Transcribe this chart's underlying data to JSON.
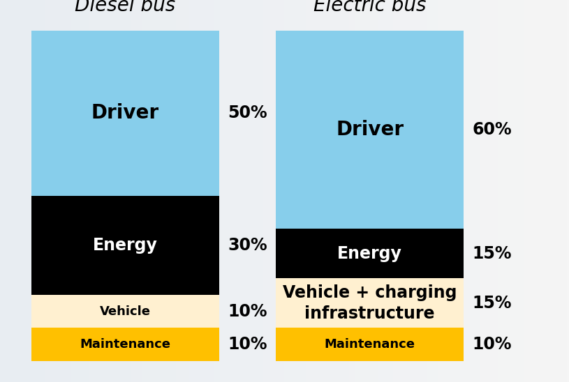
{
  "diesel": {
    "title": "Diesel bus",
    "segments": [
      {
        "label": "Maintenance",
        "value": 10,
        "color": "#FFC000",
        "text_color": "#000000",
        "bold": true
      },
      {
        "label": "Vehicle",
        "value": 10,
        "color": "#FFF0D0",
        "text_color": "#000000",
        "bold": true
      },
      {
        "label": "Energy",
        "value": 30,
        "color": "#000000",
        "text_color": "#FFFFFF",
        "bold": true
      },
      {
        "label": "Driver",
        "value": 50,
        "color": "#87CEEB",
        "text_color": "#000000",
        "bold": true
      }
    ],
    "percentages": [
      "10%",
      "10%",
      "30%",
      "50%"
    ]
  },
  "electric": {
    "title": "Electric bus",
    "segments": [
      {
        "label": "Maintenance",
        "value": 10,
        "color": "#FFC000",
        "text_color": "#000000",
        "bold": true
      },
      {
        "label": "Vehicle + charging\ninfrastructure",
        "value": 15,
        "color": "#FFF0D0",
        "text_color": "#000000",
        "bold": true
      },
      {
        "label": "Energy",
        "value": 15,
        "color": "#000000",
        "text_color": "#FFFFFF",
        "bold": true
      },
      {
        "label": "Driver",
        "value": 60,
        "color": "#87CEEB",
        "text_color": "#000000",
        "bold": true
      }
    ],
    "percentages": [
      "10%",
      "15%",
      "15%",
      "60%"
    ]
  },
  "bg_color": "#F0F0F0",
  "title_fontsize": 20,
  "label_fontsize_large": 20,
  "label_fontsize_medium": 17,
  "label_fontsize_small": 13,
  "pct_fontsize": 17
}
